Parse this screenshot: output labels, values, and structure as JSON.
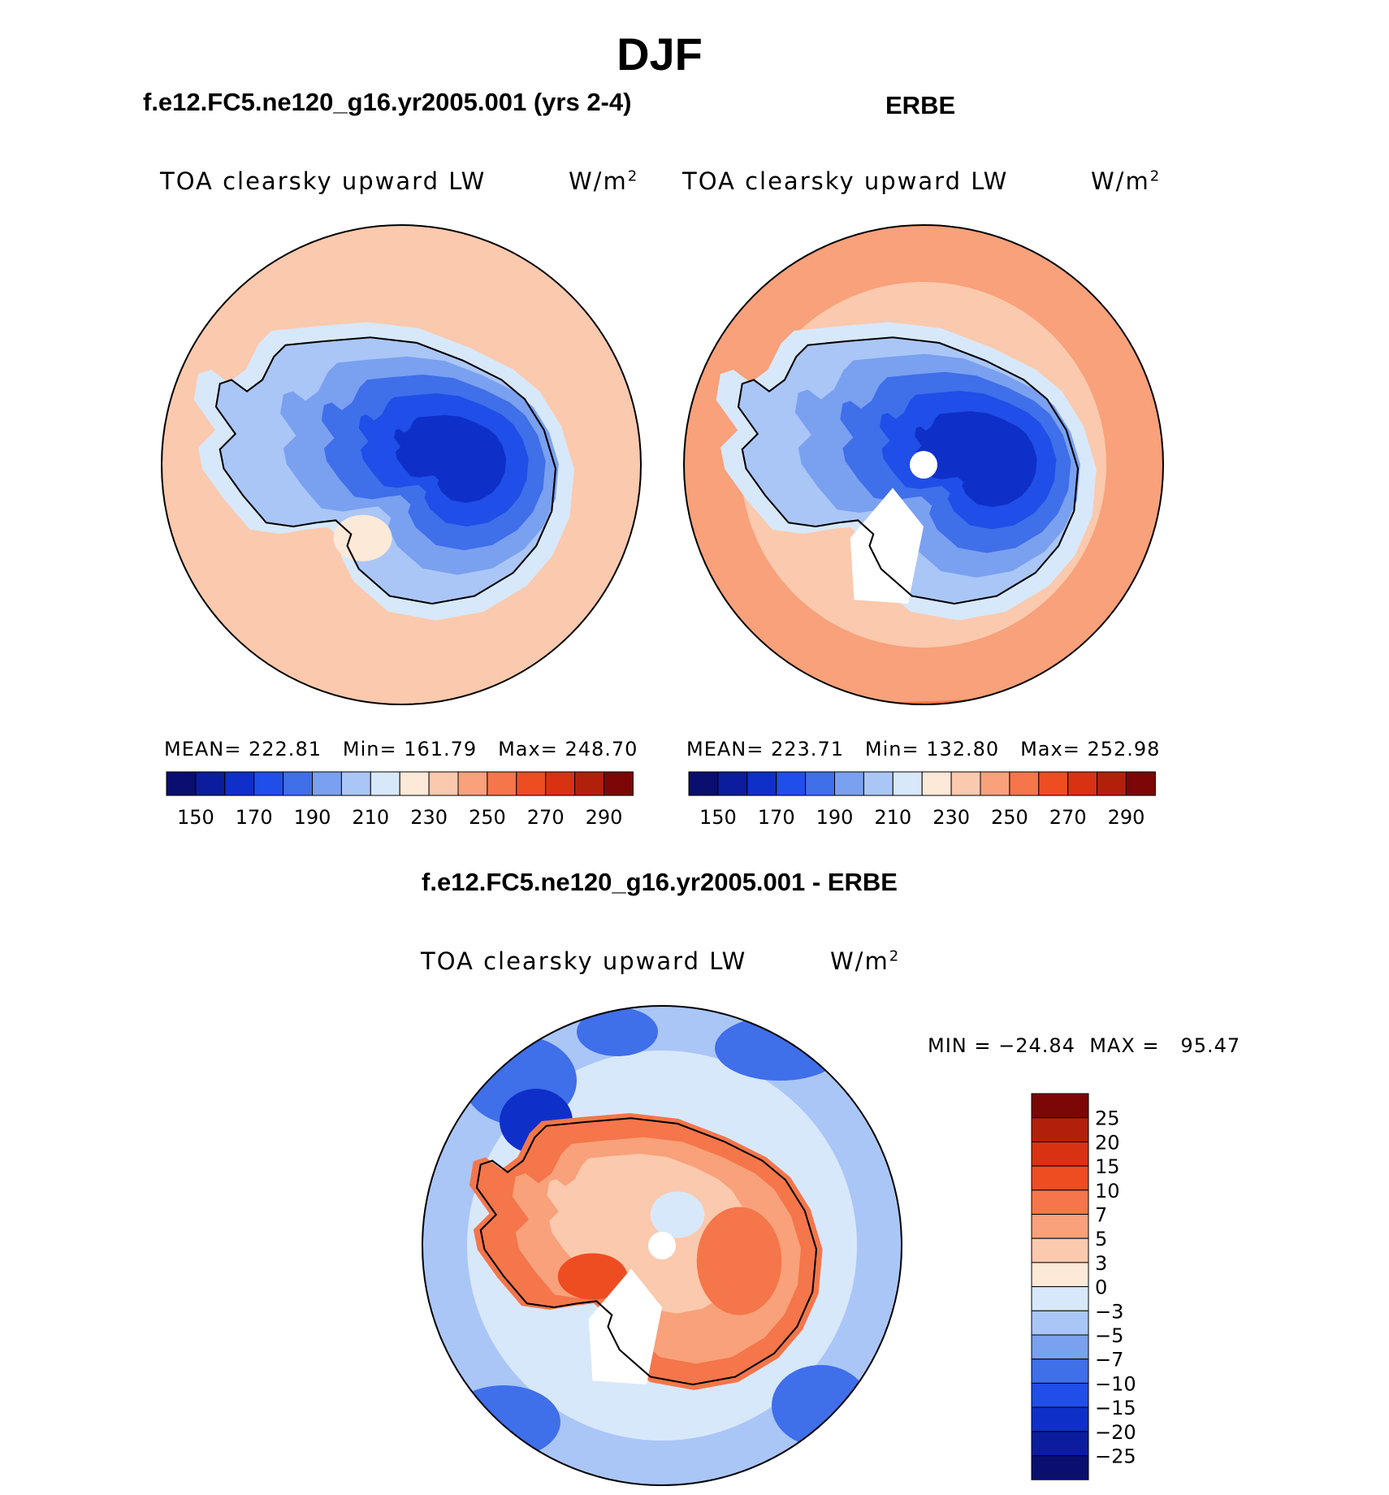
{
  "figure": {
    "season": "DJF"
  },
  "panels": {
    "model": {
      "title": "f.e12.FC5.ne120_g16.yr2005.001 (yrs 2-4)",
      "variable": "TOA clearsky upward LW",
      "units_base": "W/m",
      "units_exp": "2",
      "mean_label": "MEAN=",
      "mean": "222.81",
      "min_label": "Min=",
      "min": "161.79",
      "max_label": "Max=",
      "max": "248.70"
    },
    "obs": {
      "title": "ERBE",
      "variable": "TOA clearsky upward LW",
      "units_base": "W/m",
      "units_exp": "2",
      "mean_label": "MEAN=",
      "mean": "223.71",
      "min_label": "Min=",
      "min": "132.80",
      "max_label": "Max=",
      "max": "252.98"
    },
    "diff": {
      "title": "f.e12.FC5.ne120_g16.yr2005.001 - ERBE",
      "variable": "TOA clearsky upward LW",
      "units_base": "W/m",
      "units_exp": "2",
      "min_label": "MIN =",
      "min": "−24.84",
      "max_label": "MAX =",
      "max": "95.47"
    }
  },
  "colorbars": {
    "abs": {
      "colors": [
        "#0a0e6e",
        "#0b1d9c",
        "#0f2fc9",
        "#1f4ee8",
        "#3f6fe9",
        "#7aa0f0",
        "#aac6f7",
        "#d8e8fb",
        "#fde9d8",
        "#fbc9ad",
        "#f8a17a",
        "#f4764a",
        "#ee4d22",
        "#d93212",
        "#b2200c",
        "#7d0606"
      ],
      "tick_labels": [
        "150",
        "170",
        "190",
        "210",
        "230",
        "250",
        "270",
        "290"
      ]
    },
    "diff": {
      "colors": [
        "#7d0606",
        "#b2200c",
        "#d93212",
        "#ee4d22",
        "#f4764a",
        "#f8a17a",
        "#fbc9ad",
        "#fde9d8",
        "#d8e8fb",
        "#aac6f7",
        "#7aa0f0",
        "#3f6fe9",
        "#1f4ee8",
        "#0f2fc9",
        "#0b1d9c",
        "#0a0e6e"
      ],
      "tick_labels": [
        "25",
        "20",
        "15",
        "10",
        "7",
        "5",
        "3",
        "0",
        "−3",
        "−5",
        "−7",
        "−10",
        "−15",
        "−20",
        "−25"
      ]
    }
  },
  "chart_data": [
    {
      "type": "heatmap",
      "projection": "south-polar-stereographic",
      "title": "f.e12.FC5.ne120_g16.yr2005.001 (yrs 2-4)",
      "variable": "TOA clearsky upward LW",
      "units": "W/m2",
      "mean": 222.81,
      "min": 161.79,
      "max": 248.7,
      "contour_levels": [
        150,
        160,
        170,
        180,
        190,
        200,
        210,
        220,
        230,
        240,
        250,
        260,
        270,
        280,
        290
      ]
    },
    {
      "type": "heatmap",
      "projection": "south-polar-stereographic",
      "title": "ERBE",
      "variable": "TOA clearsky upward LW",
      "units": "W/m2",
      "mean": 223.71,
      "min": 132.8,
      "max": 252.98,
      "contour_levels": [
        150,
        160,
        170,
        180,
        190,
        200,
        210,
        220,
        230,
        240,
        250,
        260,
        270,
        280,
        290
      ]
    },
    {
      "type": "heatmap",
      "projection": "south-polar-stereographic",
      "title": "f.e12.FC5.ne120_g16.yr2005.001 - ERBE",
      "variable": "TOA clearsky upward LW",
      "units": "W/m2",
      "min": -24.84,
      "max": 95.47,
      "contour_levels": [
        -25,
        -20,
        -15,
        -10,
        -7,
        -5,
        -3,
        0,
        3,
        5,
        7,
        10,
        15,
        20,
        25
      ]
    }
  ]
}
